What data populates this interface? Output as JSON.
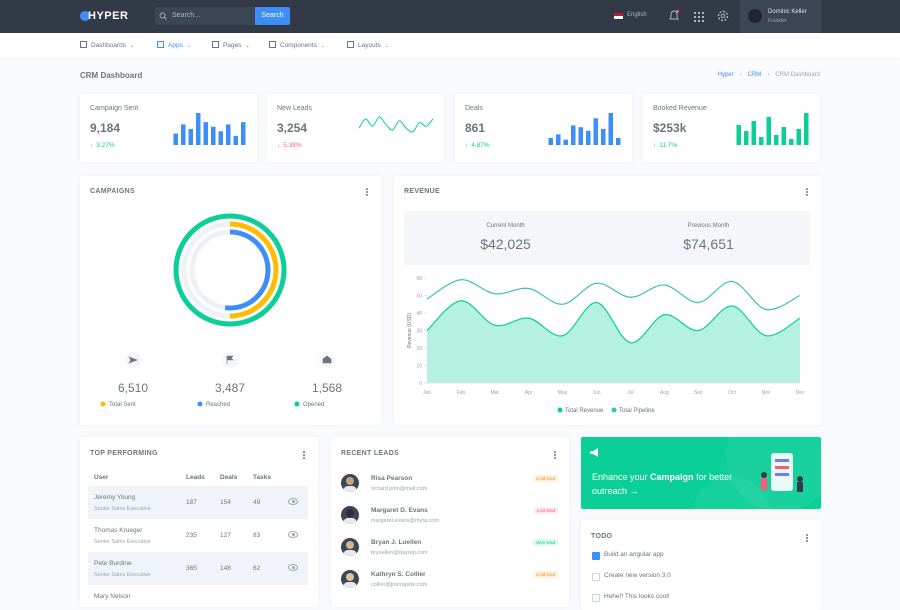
{
  "topbar": {
    "logo": "HYPER",
    "search_placeholder": "Search...",
    "search_button": "Search",
    "language": "English",
    "user_name": "Dominic Keller",
    "user_role": "Founder"
  },
  "nav": [
    "Dashboards",
    "Apps",
    "Pages",
    "Components",
    "Layouts"
  ],
  "page": {
    "title": "CRM Dashboard",
    "breadcrumb": [
      "Hyper",
      "CRM",
      "CRM Dashboard"
    ]
  },
  "stats": [
    {
      "label": "Campaign Sent",
      "value": "9,184",
      "change": "3.27%",
      "change_color": "#0acf97",
      "trend": "up",
      "chart_data": {
        "type": "bar",
        "color": "#3e8ef7",
        "values": [
          25,
          45,
          35,
          70,
          50,
          40,
          30,
          45,
          20,
          50
        ]
      }
    },
    {
      "label": "New Leads",
      "value": "3,254",
      "change": "5.38%",
      "change_color": "#fa5c7c",
      "trend": "down",
      "chart_data": {
        "type": "line",
        "color": "#0acf97",
        "values": [
          40,
          65,
          45,
          70,
          50,
          35,
          60,
          40,
          30,
          55,
          45,
          65
        ]
      }
    },
    {
      "label": "Deals",
      "value": "861",
      "change": "4.87%",
      "change_color": "#0acf97",
      "trend": "up",
      "chart_data": {
        "type": "bar",
        "color": "#3e8ef7",
        "values": [
          20,
          30,
          15,
          55,
          50,
          40,
          75,
          45,
          90,
          20
        ]
      }
    },
    {
      "label": "Booked Revenue",
      "value": "$253k",
      "change": "11.7%",
      "change_color": "#0acf97",
      "trend": "up",
      "chart_data": {
        "type": "bar",
        "color": "#0acf97",
        "values": [
          50,
          35,
          60,
          20,
          70,
          25,
          45,
          15,
          40,
          80
        ]
      }
    }
  ],
  "campaigns": {
    "title": "CAMPAIGNS",
    "metrics": [
      "6,510",
      "3,487",
      "1,568"
    ],
    "chart_data": {
      "type": "radial",
      "ylim": [
        0,
        100
      ],
      "series": [
        {
          "name": "Total Sent",
          "color": "#ffbc00",
          "values": [
            50
          ]
        },
        {
          "name": "Reached",
          "color": "#3e8ef7",
          "values": [
            52
          ]
        },
        {
          "name": "Opened",
          "color": "#0acf97",
          "values": [
            100
          ]
        }
      ]
    }
  },
  "revenue": {
    "title": "REVENUE",
    "current_label": "Current Month",
    "current_value": "$42,025",
    "previous_label": "Previous Month",
    "previous_value": "$74,651",
    "chart_data": {
      "type": "area",
      "ylabel": "Revenue (USD)",
      "x": [
        "Jan",
        "Feb",
        "Mar",
        "Apr",
        "May",
        "Jun",
        "Jul",
        "Aug",
        "Sep",
        "Oct",
        "Nov",
        "Dec"
      ],
      "ylim": [
        0,
        60
      ],
      "yticks": [
        0,
        10,
        20,
        30,
        40,
        50,
        60
      ],
      "series": [
        {
          "name": "Total Revenue",
          "color": "#0acf97",
          "values": [
            30,
            47,
            33,
            37,
            27,
            46,
            23,
            39,
            30,
            44,
            27,
            37
          ]
        },
        {
          "name": "Total Pipeline",
          "color": "#39c5b0",
          "values": [
            48,
            59,
            51,
            54,
            45,
            57,
            49,
            56,
            46,
            58,
            42,
            50
          ]
        }
      ]
    }
  },
  "top_performing": {
    "title": "TOP PERFORMING",
    "columns": [
      "User",
      "Leads",
      "Deals",
      "Tasks"
    ],
    "rows": [
      {
        "name": "Jeremy Young",
        "role": "Senior Sales Executive",
        "leads": 187,
        "deals": 154,
        "tasks": 49
      },
      {
        "name": "Thomas Krueger",
        "role": "Senior Sales Executive",
        "leads": 235,
        "deals": 127,
        "tasks": 83
      },
      {
        "name": "Pete Burdine",
        "role": "Senior Sales Executive",
        "leads": 365,
        "deals": 148,
        "tasks": 62
      },
      {
        "name": "Mary Nelson"
      }
    ]
  },
  "recent_leads": {
    "title": "RECENT LEADS",
    "items": [
      {
        "name": "Risa Pearson",
        "email": "richard.john@mail.com",
        "status": "Cold lead",
        "color": "#f7931e"
      },
      {
        "name": "Margaret D. Evans",
        "email": "margaret.evans@rhyta.com",
        "status": "Lost lead",
        "color": "#fa5c7c"
      },
      {
        "name": "Bryan J. Luellen",
        "email": "bryuellen@dayrep.com",
        "status": "Won lead",
        "color": "#0acf97"
      },
      {
        "name": "Kathryn S. Collier",
        "email": "collier@jourrapide.com",
        "status": "Cold lead",
        "color": "#f7931e"
      }
    ]
  },
  "promo": {
    "text_before": "Enhance your ",
    "highlight": "Campaign",
    "text_after": " for better outreach"
  },
  "todo": {
    "title": "TODO",
    "items": [
      {
        "text": "Build an angular app",
        "done": true
      },
      {
        "text": "Create new version 3.0",
        "done": false
      },
      {
        "text": "Hehe!! This looks cool!",
        "done": false
      }
    ]
  }
}
